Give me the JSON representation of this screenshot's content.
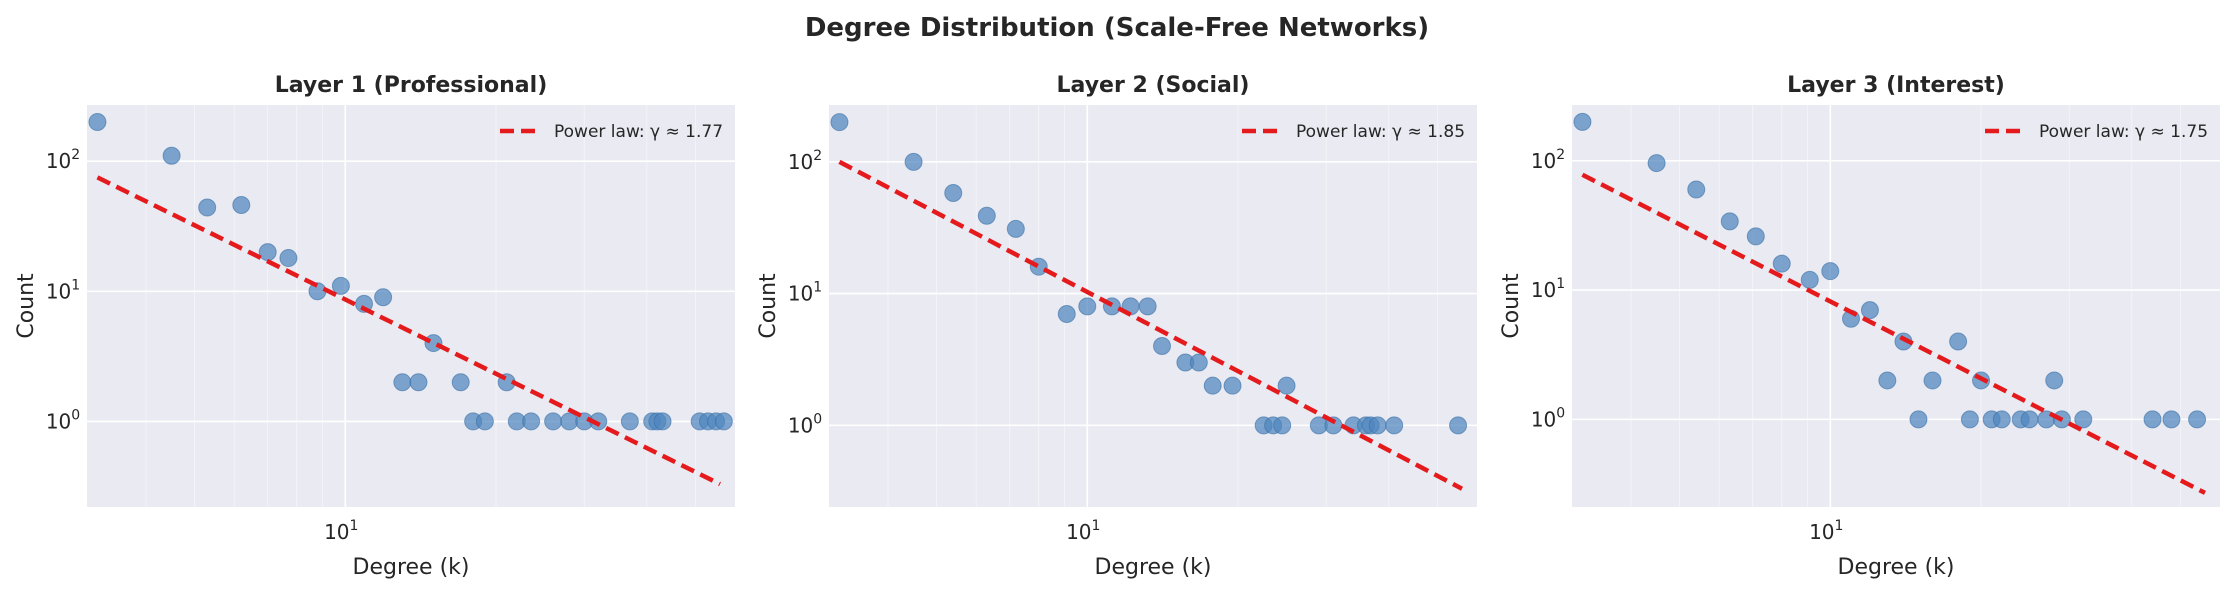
{
  "figure": {
    "suptitle": "Degree Distribution (Scale-Free Networks)"
  },
  "style": {
    "plot_bg": "#eaeaf2",
    "grid_color": "#ffffff",
    "point_color": "#4f86be",
    "fit_color": "#e41a1c",
    "text_color": "#262626"
  },
  "chart_data": [
    {
      "type": "scatter",
      "title": "Layer 1 (Professional)",
      "xlabel": "Degree (k)",
      "ylabel": "Count",
      "xscale": "log",
      "yscale": "log",
      "xlim": [
        3.05,
        60
      ],
      "ylim": [
        0.22,
        270
      ],
      "xticks": [
        {
          "value": 10,
          "base": "10",
          "exp": "1"
        }
      ],
      "yticks": [
        {
          "value": 1,
          "base": "10",
          "exp": "0"
        },
        {
          "value": 10,
          "base": "10",
          "exp": "1"
        },
        {
          "value": 100,
          "base": "10",
          "exp": "2"
        }
      ],
      "grid": true,
      "legend": "top-right",
      "fit": {
        "label": "Power law: γ ≈ 1.77",
        "x": [
          3.2,
          56
        ],
        "y": [
          75,
          0.33
        ]
      },
      "x": [
        3.2,
        4.5,
        5.3,
        6.2,
        7.0,
        7.7,
        8.8,
        9.8,
        10.9,
        11.9,
        13.0,
        14.0,
        15.0,
        17.0,
        18.0,
        19.0,
        21.0,
        22.0,
        23.5,
        26.0,
        28.0,
        30.0,
        32.0,
        37.0,
        41.0,
        42.0,
        43.0,
        51.0,
        53.0,
        55.0,
        57.0
      ],
      "y": [
        200,
        110,
        44,
        46,
        20,
        18,
        10,
        11,
        8,
        9,
        2,
        2,
        4,
        2,
        1,
        1,
        2,
        1,
        1,
        1,
        1,
        1,
        1,
        1,
        1,
        1,
        1,
        1,
        1,
        1,
        1
      ]
    },
    {
      "type": "scatter",
      "title": "Layer 2 (Social)",
      "xlabel": "Degree (k)",
      "ylabel": "Count",
      "xscale": "log",
      "yscale": "log",
      "xlim": [
        3.05,
        60
      ],
      "ylim": [
        0.24,
        270
      ],
      "xticks": [
        {
          "value": 10,
          "base": "10",
          "exp": "1"
        }
      ],
      "yticks": [
        {
          "value": 1,
          "base": "10",
          "exp": "0"
        },
        {
          "value": 10,
          "base": "10",
          "exp": "1"
        },
        {
          "value": 100,
          "base": "10",
          "exp": "2"
        }
      ],
      "grid": true,
      "legend": "top-right",
      "fit": {
        "label": "Power law: γ ≈ 1.85",
        "x": [
          3.2,
          56
        ],
        "y": [
          100,
          0.33
        ]
      },
      "x": [
        3.2,
        4.5,
        5.4,
        6.3,
        7.2,
        8.0,
        9.1,
        10.0,
        11.2,
        12.2,
        13.2,
        14.1,
        15.7,
        16.7,
        17.8,
        19.5,
        22.5,
        23.5,
        24.5,
        25.0,
        29.0,
        31.0,
        34.0,
        36.0,
        36.8,
        38.0,
        41.0,
        55.0
      ],
      "y": [
        200,
        100,
        58,
        39,
        31,
        16,
        7,
        8,
        8,
        8,
        8,
        4,
        3,
        3,
        2,
        2,
        1,
        1,
        1,
        2,
        1,
        1,
        1,
        1,
        1,
        1,
        1,
        1
      ]
    },
    {
      "type": "scatter",
      "title": "Layer 3 (Interest)",
      "xlabel": "Degree (k)",
      "ylabel": "Count",
      "xscale": "log",
      "yscale": "log",
      "xlim": [
        3.05,
        60
      ],
      "ylim": [
        0.21,
        270
      ],
      "xticks": [
        {
          "value": 10,
          "base": "10",
          "exp": "1"
        }
      ],
      "yticks": [
        {
          "value": 1,
          "base": "10",
          "exp": "0"
        },
        {
          "value": 10,
          "base": "10",
          "exp": "1"
        },
        {
          "value": 100,
          "base": "10",
          "exp": "2"
        }
      ],
      "grid": true,
      "legend": "top-right",
      "fit": {
        "label": "Power law: γ ≈ 1.75",
        "x": [
          3.2,
          56
        ],
        "y": [
          78,
          0.27
        ]
      },
      "x": [
        3.2,
        4.5,
        5.4,
        6.3,
        7.1,
        8.0,
        9.1,
        10.0,
        11.0,
        12.0,
        13.0,
        14.0,
        15.0,
        16.0,
        18.0,
        19.0,
        20.0,
        21.0,
        22.0,
        24.0,
        25.0,
        27.0,
        28.0,
        29.0,
        32.0,
        44.0,
        48.0,
        54.0
      ],
      "y": [
        200,
        96,
        60,
        34,
        26,
        16,
        12,
        14,
        6,
        7,
        2,
        4,
        1,
        2,
        4,
        1,
        2,
        1,
        1,
        1,
        1,
        1,
        2,
        1,
        1,
        1,
        1,
        1
      ]
    }
  ]
}
